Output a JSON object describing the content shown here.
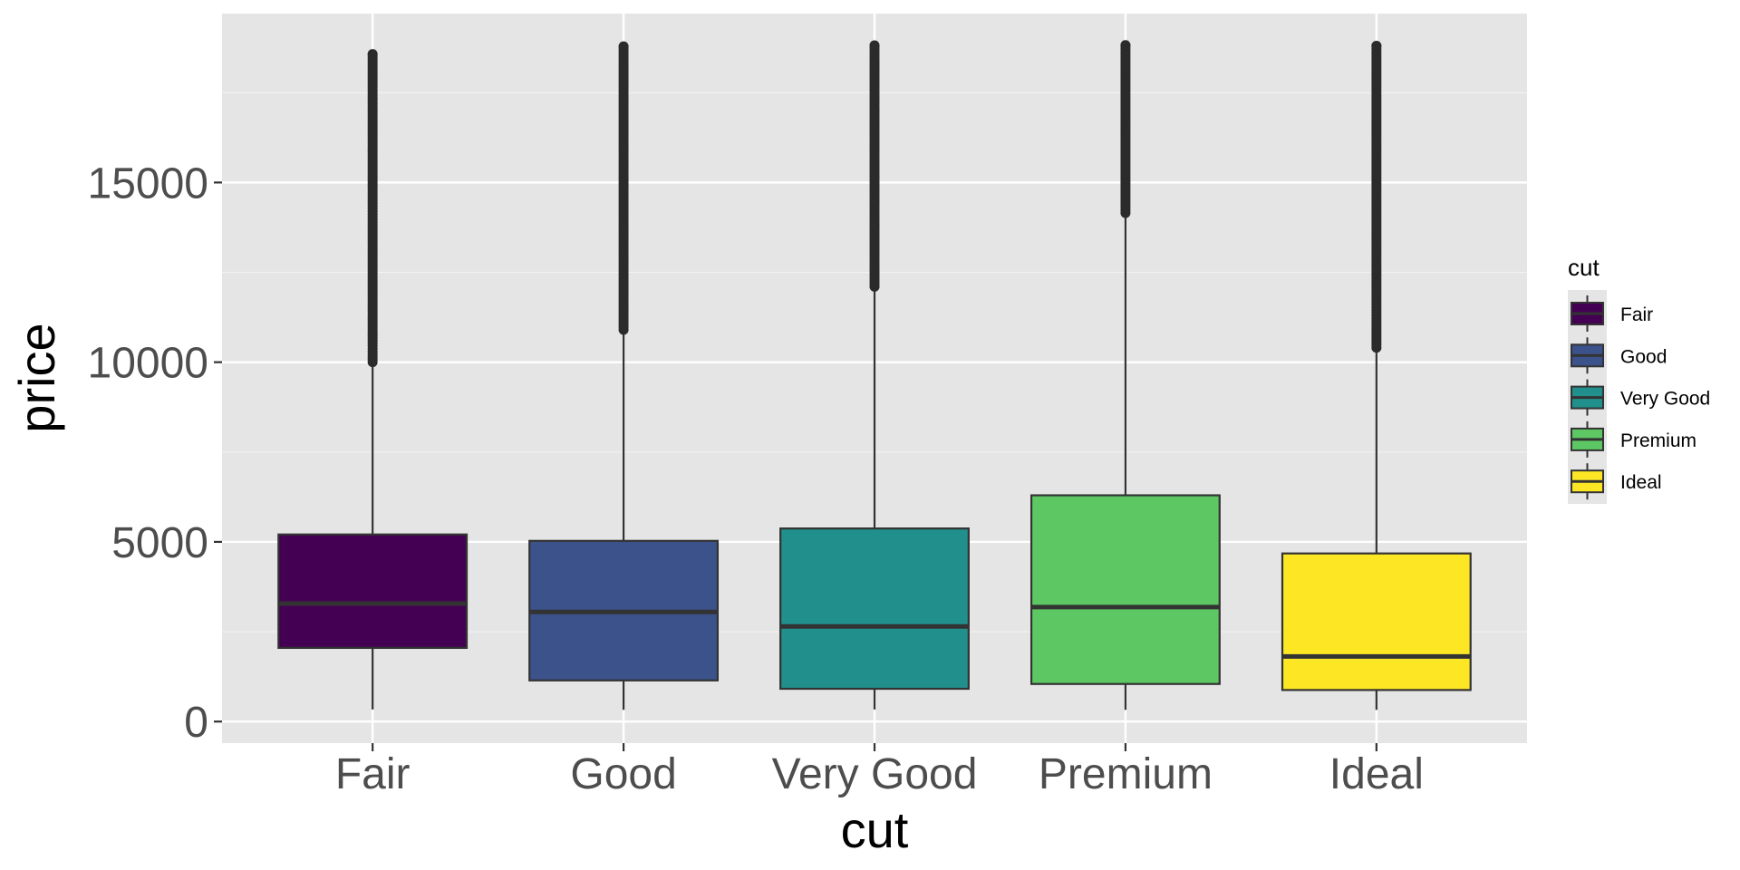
{
  "chart_data": {
    "type": "boxplot",
    "xlabel": "cut",
    "ylabel": "price",
    "categories": [
      "Fair",
      "Good",
      "Very Good",
      "Premium",
      "Ideal"
    ],
    "y_ticks": [
      0,
      5000,
      10000,
      15000
    ],
    "y_tick_labels": [
      "0",
      "5000",
      "10000",
      "15000"
    ],
    "ylim": [
      -600,
      19700
    ],
    "grid": true,
    "legend": {
      "title": "cut",
      "position": "right",
      "entries": [
        "Fair",
        "Good",
        "Very Good",
        "Premium",
        "Ideal"
      ]
    },
    "colors": [
      "#440154",
      "#3b528b",
      "#21908c",
      "#5dc863",
      "#fde725"
    ],
    "boxes": [
      {
        "category": "Fair",
        "min": 337,
        "q1": 2050,
        "median": 3282,
        "q3": 5206,
        "whisker_high": 9950,
        "outliers_from": 10000,
        "outliers_to": 18574
      },
      {
        "category": "Good",
        "min": 327,
        "q1": 1145,
        "median": 3051,
        "q3": 5028,
        "whisker_high": 10850,
        "outliers_from": 10900,
        "outliers_to": 18788
      },
      {
        "category": "Very Good",
        "min": 336,
        "q1": 912,
        "median": 2648,
        "q3": 5373,
        "whisker_high": 12050,
        "outliers_from": 12100,
        "outliers_to": 18818
      },
      {
        "category": "Premium",
        "min": 326,
        "q1": 1046,
        "median": 3185,
        "q3": 6296,
        "whisker_high": 14100,
        "outliers_from": 14150,
        "outliers_to": 18823
      },
      {
        "category": "Ideal",
        "min": 326,
        "q1": 878,
        "median": 1810,
        "q3": 4678,
        "whisker_high": 10350,
        "outliers_from": 10400,
        "outliers_to": 18806
      }
    ]
  }
}
